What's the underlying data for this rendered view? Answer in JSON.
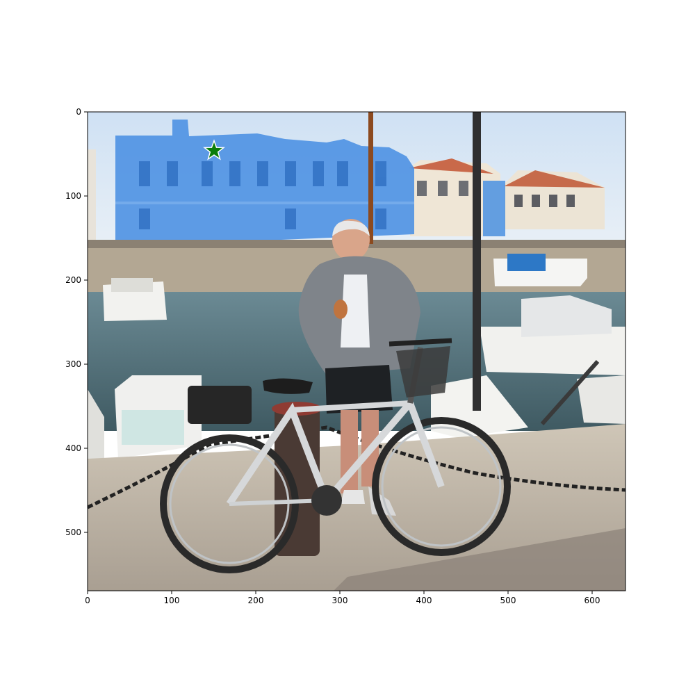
{
  "figure": {
    "x_ticks": [
      "0",
      "100",
      "200",
      "300",
      "400",
      "500",
      "600"
    ],
    "y_ticks": [
      "0",
      "100",
      "200",
      "300",
      "400",
      "500"
    ]
  },
  "scene": {
    "description_tags": [
      "harbor",
      "man",
      "bicycle",
      "boats",
      "buildings"
    ],
    "highlight_color": "#4a90e2",
    "marker_color": "#0a7d0a",
    "marker_icon": "star-icon"
  },
  "overlay": {
    "highlighted_region": "building",
    "marker_point_data": [
      152,
      45
    ]
  }
}
